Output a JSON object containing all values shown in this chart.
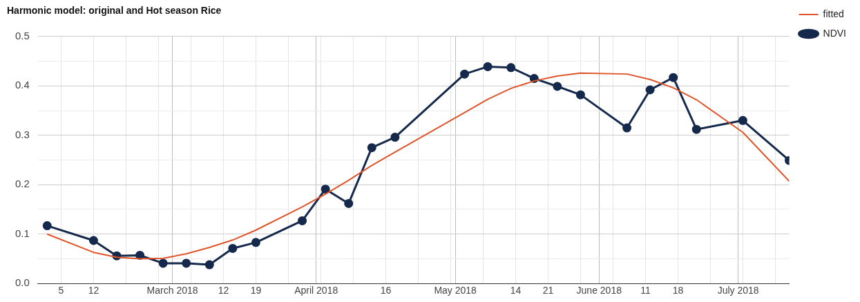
{
  "chart_data": {
    "type": "line",
    "title": "Harmonic model: original and Hot season Rice",
    "x": [
      "2018-02-02",
      "2018-02-12",
      "2018-02-17",
      "2018-02-22",
      "2018-02-27",
      "2018-03-04",
      "2018-03-09",
      "2018-03-14",
      "2018-03-19",
      "2018-03-29",
      "2018-04-03",
      "2018-04-08",
      "2018-04-13",
      "2018-04-18",
      "2018-05-03",
      "2018-05-08",
      "2018-05-13",
      "2018-05-18",
      "2018-05-23",
      "2018-05-28",
      "2018-06-07",
      "2018-06-12",
      "2018-06-17",
      "2018-06-22",
      "2018-07-02",
      "2018-07-12"
    ],
    "series": [
      {
        "name": "NDVI",
        "color": "#14294b",
        "marker": "circle",
        "values": [
          0.117,
          0.087,
          0.056,
          0.057,
          0.041,
          0.041,
          0.038,
          0.071,
          0.083,
          0.127,
          0.191,
          0.162,
          0.275,
          0.296,
          0.424,
          0.439,
          0.437,
          0.415,
          0.399,
          0.382,
          0.315,
          0.392,
          0.417,
          0.312,
          0.33,
          0.249
        ]
      },
      {
        "name": "fitted",
        "color": "#e0542a",
        "marker": "none",
        "values": [
          0.1,
          0.063,
          0.053,
          0.05,
          0.051,
          0.06,
          0.073,
          0.088,
          0.108,
          0.155,
          0.181,
          0.209,
          0.239,
          0.266,
          0.346,
          0.373,
          0.395,
          0.41,
          0.42,
          0.426,
          0.424,
          0.413,
          0.396,
          0.372,
          0.306,
          0.207
        ]
      }
    ],
    "xlim": [
      "2018-01-31",
      "2018-07-12"
    ],
    "xticks": [
      {
        "value": "2018-02-05",
        "label": "5"
      },
      {
        "value": "2018-02-12",
        "label": "12"
      },
      {
        "value": "2018-02-19",
        "label": null
      },
      {
        "value": "2018-02-26",
        "label": null
      },
      {
        "value": "2018-03-01",
        "label": "March 2018"
      },
      {
        "value": "2018-03-05",
        "label": null
      },
      {
        "value": "2018-03-12",
        "label": "12"
      },
      {
        "value": "2018-03-19",
        "label": "19"
      },
      {
        "value": "2018-03-26",
        "label": null
      },
      {
        "value": "2018-04-01",
        "label": "April 2018"
      },
      {
        "value": "2018-04-02",
        "label": null
      },
      {
        "value": "2018-04-09",
        "label": null
      },
      {
        "value": "2018-04-16",
        "label": "16"
      },
      {
        "value": "2018-04-23",
        "label": null
      },
      {
        "value": "2018-04-30",
        "label": null
      },
      {
        "value": "2018-05-01",
        "label": "May 2018"
      },
      {
        "value": "2018-05-07",
        "label": null
      },
      {
        "value": "2018-05-14",
        "label": "14"
      },
      {
        "value": "2018-05-21",
        "label": "21"
      },
      {
        "value": "2018-05-28",
        "label": null
      },
      {
        "value": "2018-06-01",
        "label": "June 2018"
      },
      {
        "value": "2018-06-04",
        "label": null
      },
      {
        "value": "2018-06-11",
        "label": "11"
      },
      {
        "value": "2018-06-18",
        "label": "18"
      },
      {
        "value": "2018-06-25",
        "label": null
      },
      {
        "value": "2018-07-01",
        "label": "July 2018"
      },
      {
        "value": "2018-07-02",
        "label": null
      },
      {
        "value": "2018-07-09",
        "label": null
      }
    ],
    "ylim": [
      0,
      0.5
    ],
    "yticks": [
      {
        "value": 0,
        "label": "0.0"
      },
      {
        "value": 0.05,
        "label": null
      },
      {
        "value": 0.1,
        "label": "0.1"
      },
      {
        "value": 0.15,
        "label": null
      },
      {
        "value": 0.2,
        "label": "0.2"
      },
      {
        "value": 0.25,
        "label": null
      },
      {
        "value": 0.3,
        "label": "0.3"
      },
      {
        "value": 0.35,
        "label": null
      },
      {
        "value": 0.4,
        "label": "0.4"
      },
      {
        "value": 0.45,
        "label": null
      },
      {
        "value": 0.5,
        "label": "0.5"
      }
    ],
    "grid": true,
    "legend": "top right",
    "line_style": "solid"
  }
}
